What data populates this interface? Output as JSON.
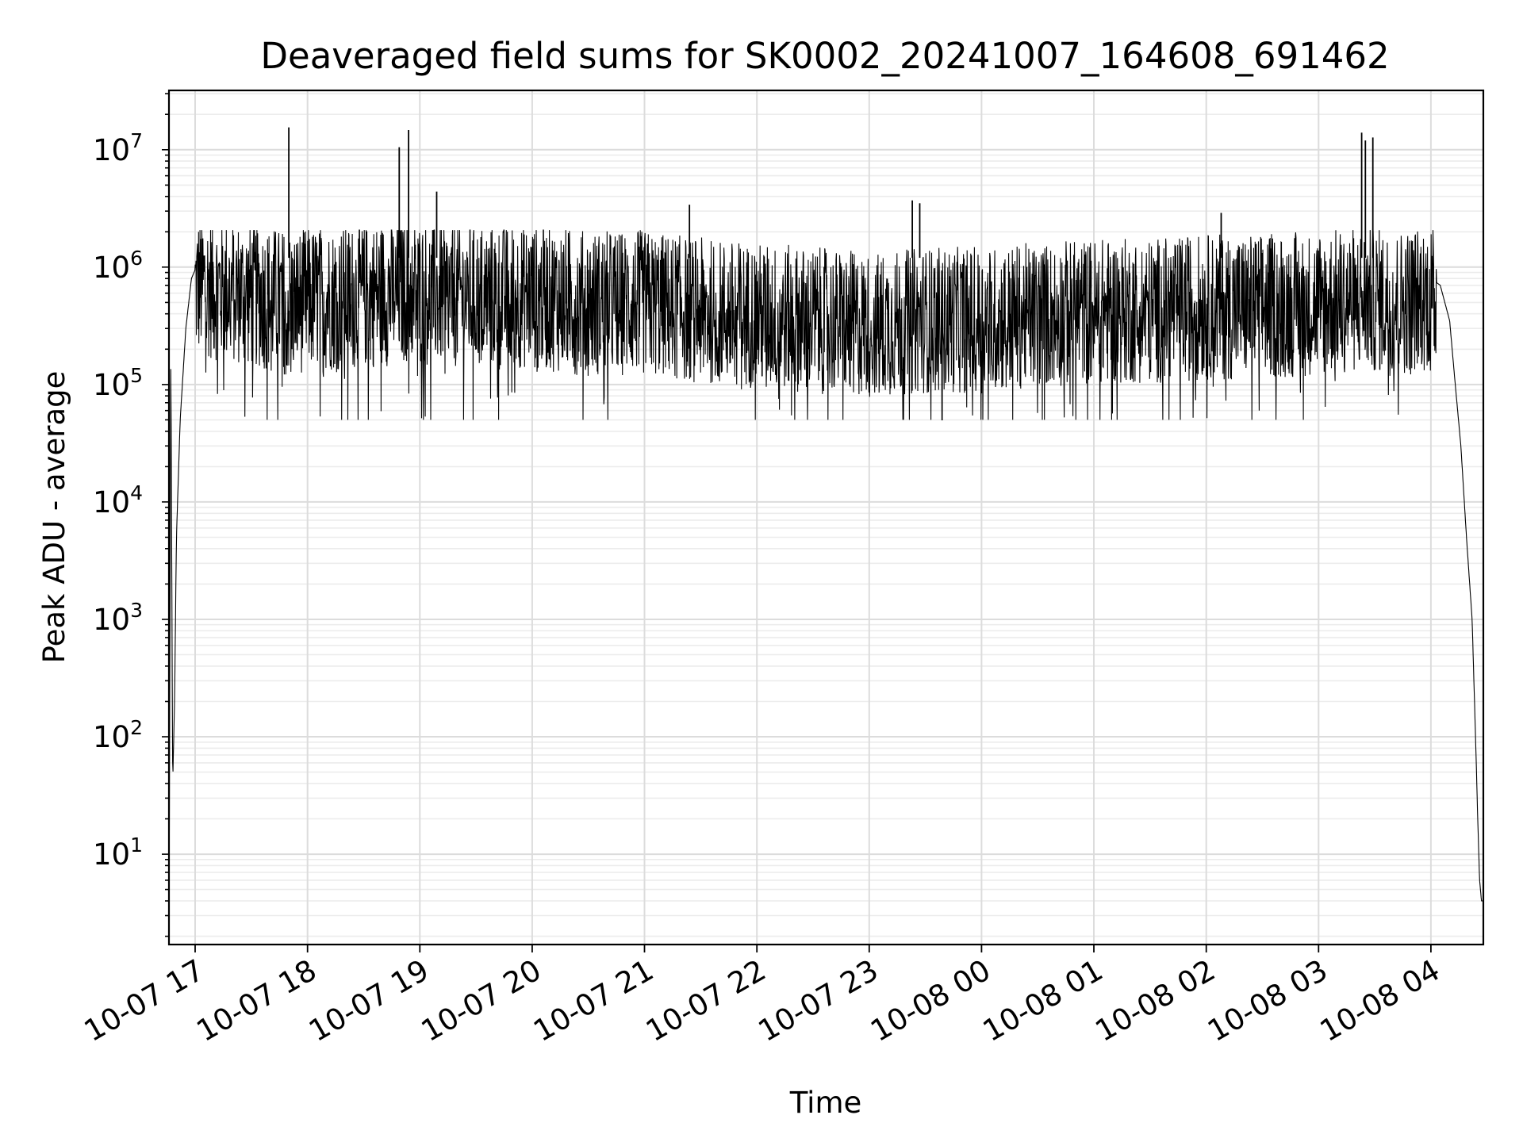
{
  "chart_data": {
    "type": "line",
    "title": "Deaveraged field sums for SK0002_20241007_164608_691462",
    "xlabel": "Time",
    "ylabel": "Peak ADU - average",
    "yscale": "log",
    "ylim": [
      1.7,
      32000000
    ],
    "xlim": [
      "2024-10-07 16:46",
      "2024-10-08 04:28"
    ],
    "grid": true,
    "line_color": "#000000",
    "x_ticks": [
      "10-07 17",
      "10-07 18",
      "10-07 19",
      "10-07 20",
      "10-07 21",
      "10-07 22",
      "10-07 23",
      "10-08 00",
      "10-08 01",
      "10-08 02",
      "10-08 03",
      "10-08 04"
    ],
    "y_ticks": [
      {
        "base": "10",
        "exp": "1",
        "value": 10
      },
      {
        "base": "10",
        "exp": "2",
        "value": 100
      },
      {
        "base": "10",
        "exp": "3",
        "value": 1000
      },
      {
        "base": "10",
        "exp": "4",
        "value": 10000
      },
      {
        "base": "10",
        "exp": "5",
        "value": 100000
      },
      {
        "base": "10",
        "exp": "6",
        "value": 1000000
      },
      {
        "base": "10",
        "exp": "7",
        "value": 10000000
      }
    ],
    "series": [
      {
        "x": [
          "2024-10-07 16:46",
          "2024-10-07 16:47",
          "2024-10-07 16:48",
          "2024-10-07 16:49",
          "2024-10-07 16:50",
          "2024-10-07 16:52",
          "2024-10-07 16:55",
          "2024-10-07 16:58",
          "2024-10-07 17:00",
          "2024-10-07 17:05",
          "2024-10-07 17:15",
          "2024-10-07 17:35",
          "2024-10-07 17:50",
          "2024-10-07 18:00",
          "2024-10-07 18:30",
          "2024-10-07 18:55",
          "2024-10-07 19:00",
          "2024-10-07 19:30",
          "2024-10-07 20:00",
          "2024-10-07 20:30",
          "2024-10-07 21:00",
          "2024-10-07 21:30",
          "2024-10-07 22:00",
          "2024-10-07 22:30",
          "2024-10-07 23:00",
          "2024-10-07 23:30",
          "2024-10-08 00:00",
          "2024-10-08 00:30",
          "2024-10-08 01:00",
          "2024-10-08 01:30",
          "2024-10-08 02:00",
          "2024-10-08 02:30",
          "2024-10-08 03:00",
          "2024-10-08 03:25",
          "2024-10-08 03:40",
          "2024-10-08 04:00",
          "2024-10-08 04:05",
          "2024-10-08 04:10",
          "2024-10-08 04:13",
          "2024-10-08 04:16",
          "2024-10-08 04:19",
          "2024-10-08 04:22",
          "2024-10-08 04:24",
          "2024-10-08 04:25",
          "2024-10-08 04:26",
          "2024-10-08 04:27",
          "2024-10-08 04:28"
        ],
        "values": [
          2,
          180000,
          40,
          200,
          5000,
          50000,
          300000,
          800000,
          950000,
          1000000,
          900000,
          800000,
          700000,
          750000,
          800000,
          900000,
          850000,
          800000,
          800000,
          700000,
          700000,
          600000,
          550000,
          500000,
          450000,
          500000,
          500000,
          550000,
          600000,
          600000,
          650000,
          650000,
          700000,
          750000,
          700000,
          800000,
          700000,
          350000,
          100000,
          30000,
          5000,
          1000,
          80,
          20,
          6,
          4,
          4
        ],
        "noise_band": {
          "low": 100000,
          "high": 1800000
        },
        "spikes": [
          {
            "x": "2024-10-07 17:50",
            "value": 15500000
          },
          {
            "x": "2024-10-07 18:49",
            "value": 10500000
          },
          {
            "x": "2024-10-07 18:54",
            "value": 14700000
          },
          {
            "x": "2024-10-07 19:09",
            "value": 4400000
          },
          {
            "x": "2024-10-07 21:24",
            "value": 3400000
          },
          {
            "x": "2024-10-07 23:23",
            "value": 3700000
          },
          {
            "x": "2024-10-07 23:27",
            "value": 3500000
          },
          {
            "x": "2024-10-08 02:08",
            "value": 2900000
          },
          {
            "x": "2024-10-08 03:23",
            "value": 14000000
          },
          {
            "x": "2024-10-08 03:25",
            "value": 12000000
          },
          {
            "x": "2024-10-08 03:29",
            "value": 12700000
          }
        ]
      }
    ]
  }
}
